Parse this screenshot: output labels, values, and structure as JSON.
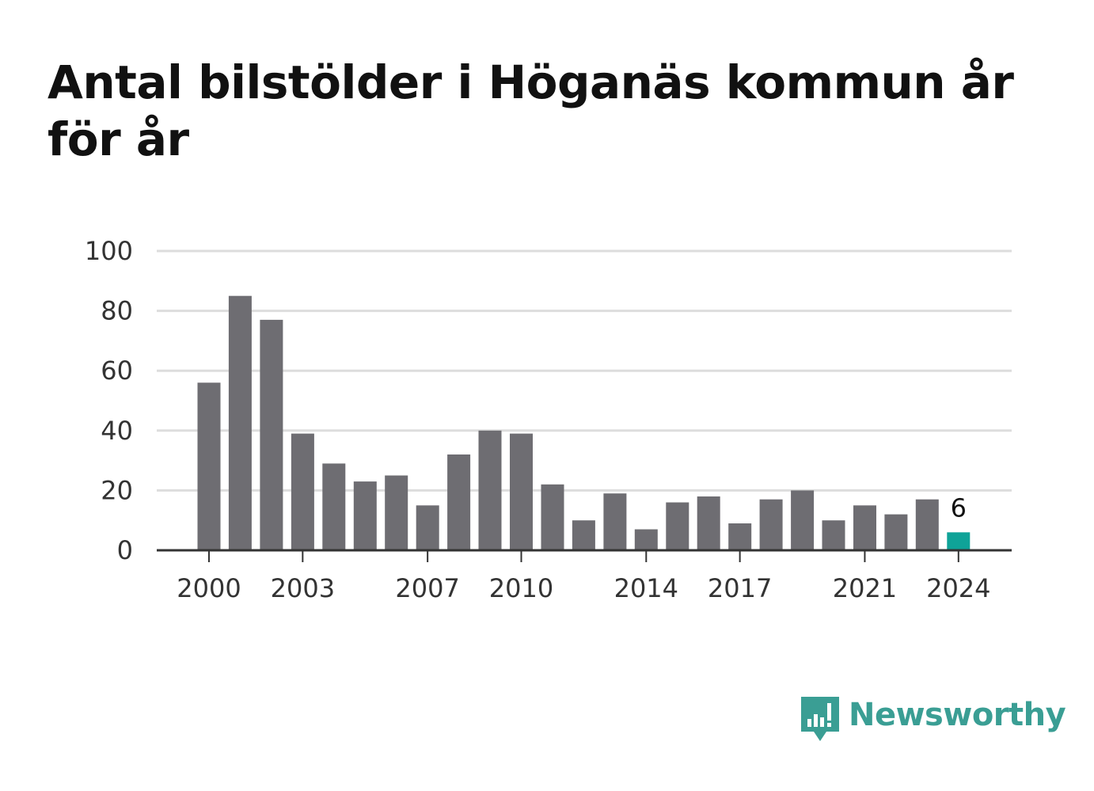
{
  "title": "Antal bilstölder i Höganäs kommun år för år",
  "chart_data": {
    "type": "bar",
    "categories": [
      "2000",
      "2001",
      "2002",
      "2003",
      "2004",
      "2005",
      "2006",
      "2007",
      "2008",
      "2009",
      "2010",
      "2011",
      "2012",
      "2013",
      "2014",
      "2015",
      "2016",
      "2017",
      "2018",
      "2019",
      "2020",
      "2021",
      "2022",
      "2023",
      "2024"
    ],
    "values": [
      56,
      85,
      77,
      39,
      29,
      23,
      25,
      15,
      32,
      40,
      39,
      22,
      10,
      19,
      7,
      16,
      18,
      9,
      17,
      20,
      10,
      15,
      12,
      17,
      6
    ],
    "x_tick_labels": [
      "2000",
      "2003",
      "2007",
      "2010",
      "2014",
      "2017",
      "2021",
      "2024"
    ],
    "y_ticks": [
      0,
      20,
      40,
      60,
      80,
      100
    ],
    "ylim": [
      0,
      100
    ],
    "grid": true,
    "highlight": {
      "category": "2024",
      "label": "6"
    },
    "colors": {
      "bar": "#6e6d72",
      "highlight": "#0fa398",
      "grid": "#dddddd",
      "axis": "#333333"
    }
  },
  "brand": {
    "name": "Newsworthy",
    "color": "#3a9e94",
    "icon": "newsworthy-logo-icon"
  }
}
